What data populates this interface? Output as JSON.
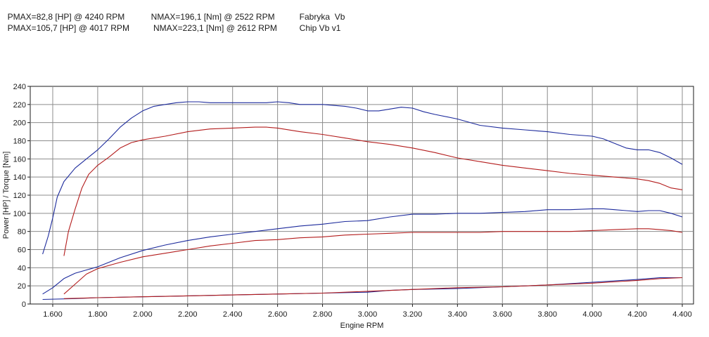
{
  "header": {
    "rows": [
      {
        "pmax": "PMAX=82,8 [HP] @ 4240 RPM",
        "nmax": "NMAX=196,1 [Nm] @ 2522 RPM",
        "name": "Fabryka  Vb"
      },
      {
        "pmax": "PMAX=105,7 [HP] @ 4017 RPM",
        "nmax": " NMAX=223,1 [Nm] @ 2612 RPM",
        "name": "Chip Vb v1"
      }
    ]
  },
  "chart_data": {
    "type": "line",
    "xlabel": "Engine RPM",
    "ylabel": "Power [HP] / Torque [Nm]",
    "xlim": [
      1500,
      4450
    ],
    "ylim": [
      0,
      240
    ],
    "x_ticks": [
      1600,
      1800,
      2000,
      2200,
      2400,
      2600,
      2800,
      3000,
      3200,
      3400,
      3600,
      3800,
      4000,
      4200,
      4400
    ],
    "x_tick_labels": [
      "1.600",
      "1.800",
      "2.000",
      "2.200",
      "2.400",
      "2.600",
      "2.800",
      "3.000",
      "3.200",
      "3.400",
      "3.600",
      "3.800",
      "4.000",
      "4.200",
      "4.400"
    ],
    "y_ticks": [
      0,
      20,
      40,
      60,
      80,
      100,
      120,
      140,
      160,
      180,
      200,
      220,
      240
    ],
    "grid": true,
    "colors": {
      "blue": "#1c2a9c",
      "red": "#b31c1c",
      "grid": "#8c8c8c",
      "background": "#ffffff"
    },
    "series": [
      {
        "color": "#1c2a9c",
        "x": [
          1555,
          1580,
          1600,
          1620,
          1650,
          1700,
          1750,
          1800,
          1850,
          1900,
          1950,
          2000,
          2050,
          2100,
          2150,
          2200,
          2250,
          2300,
          2400,
          2500,
          2550,
          2600,
          2650,
          2700,
          2800,
          2900,
          2950,
          3000,
          3050,
          3100,
          3150,
          3200,
          3250,
          3300,
          3400,
          3500,
          3600,
          3700,
          3800,
          3900,
          4000,
          4050,
          4100,
          4150,
          4200,
          4250,
          4300,
          4350,
          4400
        ],
        "y": [
          55,
          75,
          95,
          118,
          135,
          150,
          160,
          170,
          182,
          195,
          205,
          213,
          218,
          220,
          222,
          223,
          223,
          222,
          222,
          222,
          222,
          223,
          222,
          220,
          220,
          218,
          216,
          213,
          213,
          215,
          217,
          216,
          212,
          209,
          204,
          197,
          194,
          192,
          190,
          187,
          185,
          182,
          177,
          172,
          170,
          170,
          167,
          161,
          154
        ]
      },
      {
        "color": "#b31c1c",
        "x": [
          1650,
          1670,
          1700,
          1730,
          1760,
          1800,
          1850,
          1900,
          1950,
          2000,
          2100,
          2200,
          2300,
          2400,
          2500,
          2550,
          2600,
          2700,
          2800,
          2900,
          3000,
          3100,
          3200,
          3300,
          3400,
          3500,
          3600,
          3700,
          3800,
          3900,
          4000,
          4100,
          4200,
          4250,
          4300,
          4350,
          4400
        ],
        "y": [
          53,
          80,
          105,
          128,
          143,
          153,
          162,
          172,
          178,
          181,
          185,
          190,
          193,
          194,
          195,
          195,
          194,
          190,
          187,
          183,
          179,
          176,
          172,
          167,
          161,
          157,
          153,
          150,
          147,
          144,
          142,
          140,
          138,
          136,
          133,
          128,
          126
        ]
      },
      {
        "color": "#1c2a9c",
        "x": [
          1555,
          1600,
          1650,
          1700,
          1800,
          1900,
          2000,
          2100,
          2200,
          2300,
          2400,
          2500,
          2600,
          2700,
          2800,
          2900,
          3000,
          3100,
          3200,
          3300,
          3400,
          3500,
          3600,
          3700,
          3800,
          3900,
          4000,
          4050,
          4100,
          4150,
          4200,
          4250,
          4300,
          4350,
          4400
        ],
        "y": [
          11,
          18,
          28,
          34,
          41,
          51,
          59,
          65,
          70,
          74,
          77,
          80,
          83,
          86,
          88,
          91,
          92,
          96,
          99,
          99,
          100,
          100,
          101,
          102,
          104,
          104,
          105,
          105,
          104,
          103,
          102,
          103,
          103,
          100,
          96
        ]
      },
      {
        "color": "#b31c1c",
        "x": [
          1650,
          1700,
          1750,
          1800,
          1900,
          2000,
          2100,
          2200,
          2300,
          2400,
          2500,
          2600,
          2700,
          2800,
          2900,
          3000,
          3100,
          3200,
          3300,
          3400,
          3500,
          3600,
          3700,
          3800,
          3900,
          4000,
          4100,
          4200,
          4250,
          4300,
          4350,
          4400
        ],
        "y": [
          11,
          22,
          33,
          39,
          46,
          52,
          56,
          60,
          64,
          67,
          70,
          71,
          73,
          74,
          76,
          77,
          78,
          79,
          79,
          79,
          79,
          80,
          80,
          80,
          80,
          81,
          82,
          83,
          83,
          82,
          81,
          79
        ]
      },
      {
        "color": "#1c2a9c",
        "x": [
          1555,
          1700,
          1800,
          2000,
          2200,
          2400,
          2600,
          2800,
          3000,
          3100,
          3200,
          3400,
          3600,
          3800,
          4000,
          4200,
          4300,
          4400
        ],
        "y": [
          5,
          6,
          7,
          8,
          9,
          10,
          11,
          12,
          13,
          15,
          16,
          17,
          19,
          21,
          24,
          27,
          29,
          29
        ]
      },
      {
        "color": "#b31c1c",
        "x": [
          1650,
          1800,
          2000,
          2200,
          2400,
          2600,
          2800,
          3000,
          3200,
          3400,
          3600,
          3800,
          4000,
          4200,
          4300,
          4400
        ],
        "y": [
          6,
          7,
          8,
          9,
          10,
          11,
          12,
          14,
          16,
          18,
          19,
          21,
          23,
          26,
          28,
          29
        ]
      }
    ]
  }
}
